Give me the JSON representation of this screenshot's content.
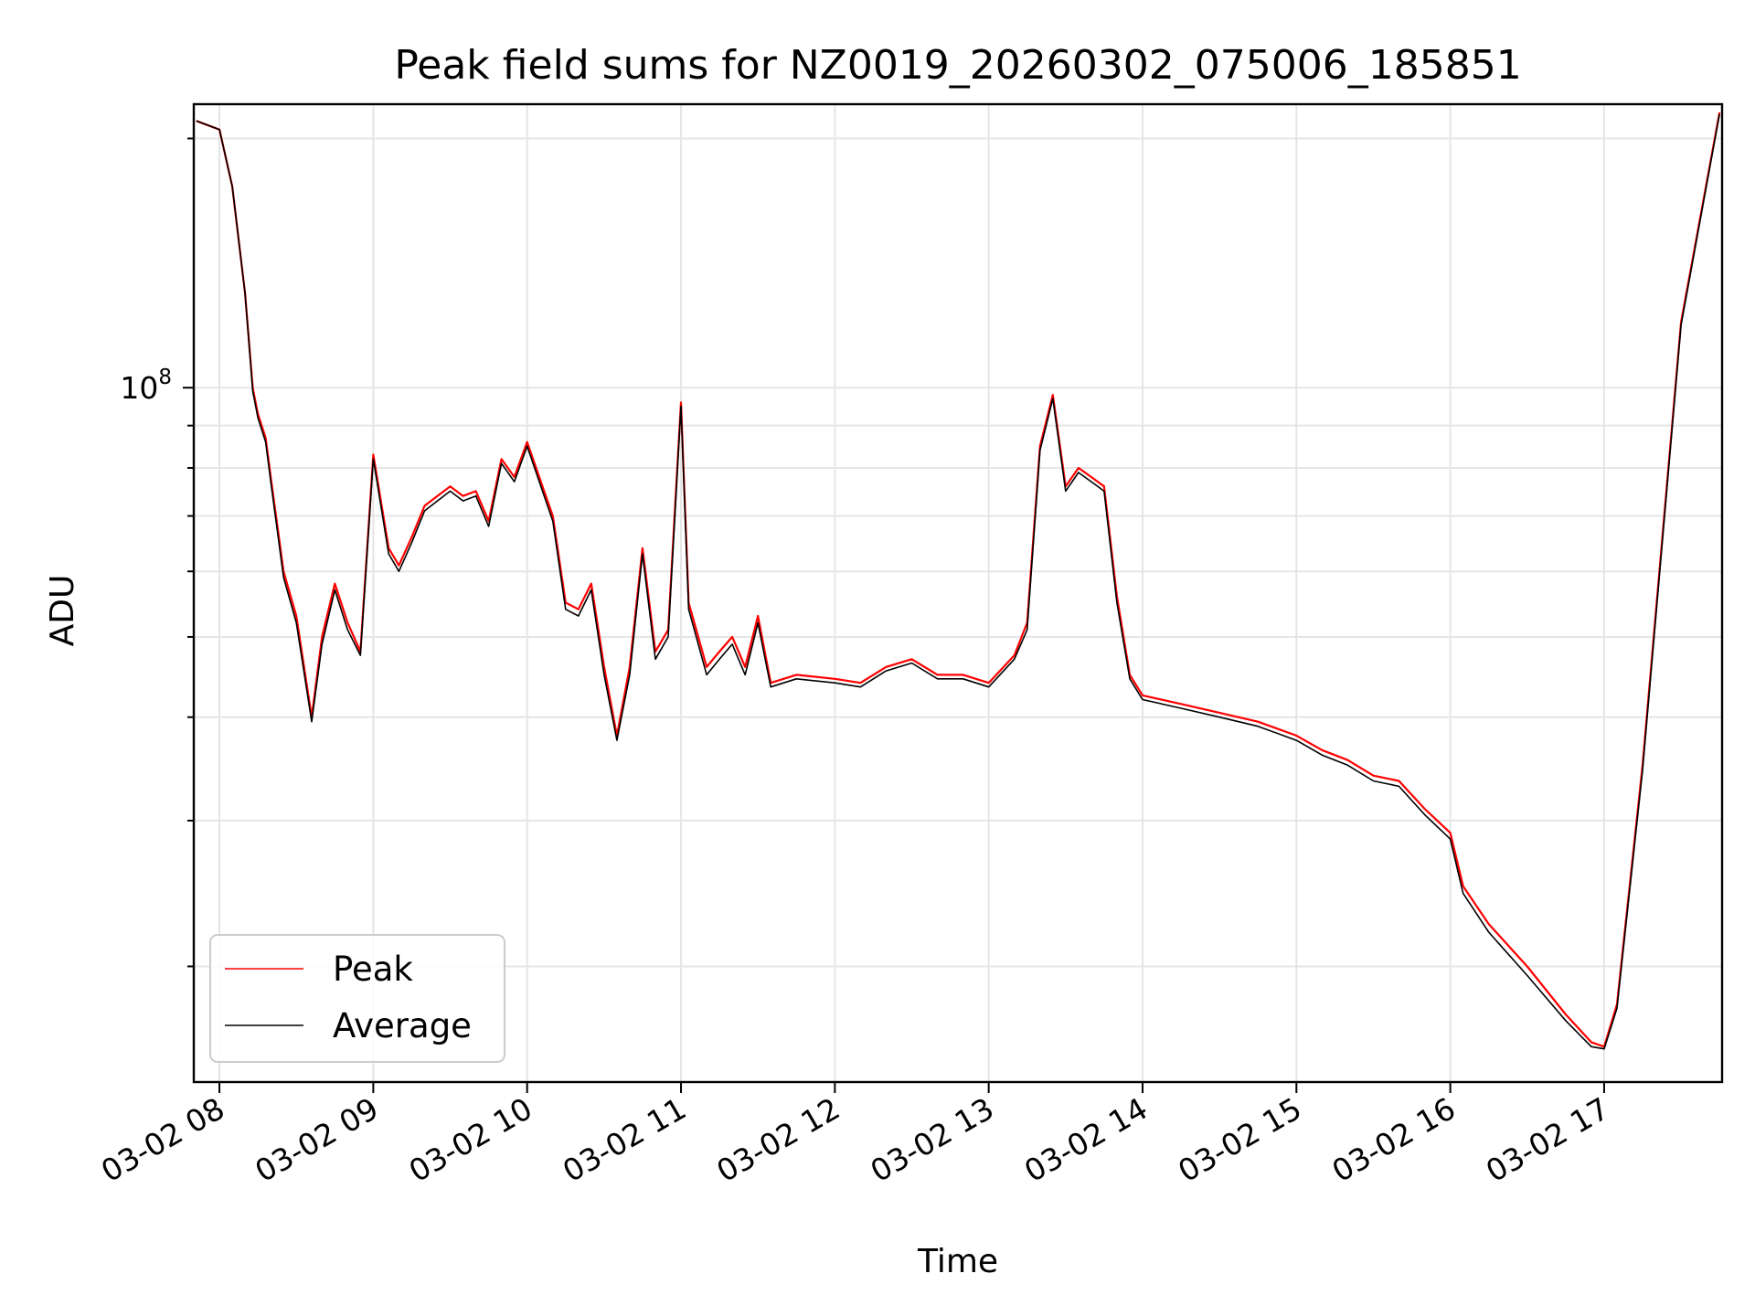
{
  "chart_data": {
    "type": "line",
    "title": "Peak field sums for NZ0019_20260302_075006_185851",
    "xlabel": "Time",
    "ylabel": "ADU",
    "yscale": "log",
    "grid": true,
    "legend_position": "lower-left",
    "xlim": [
      "03-02 07:50",
      "03-02 17:46"
    ],
    "ylim": [
      14500000,
      220000000
    ],
    "x_ticks": [
      "03-02 08",
      "03-02 09",
      "03-02 10",
      "03-02 11",
      "03-02 12",
      "03-02 13",
      "03-02 14",
      "03-02 15",
      "03-02 16",
      "03-02 17"
    ],
    "y_tick_major": {
      "value": 100000000,
      "base": "10",
      "exponent": "8"
    },
    "y_tick_minor": [
      20000000,
      30000000,
      40000000,
      50000000,
      60000000,
      70000000,
      80000000,
      90000000,
      200000000
    ],
    "colors": {
      "peak": "#ff0000",
      "average": "#000000"
    },
    "series": [
      {
        "name": "Peak",
        "color": "#ff0000",
        "x": [
          "03-02 07:51",
          "03-02 08:00",
          "03-02 08:05",
          "03-02 08:10",
          "03-02 08:13",
          "03-02 08:15",
          "03-02 08:18",
          "03-02 08:20",
          "03-02 08:25",
          "03-02 08:30",
          "03-02 08:36",
          "03-02 08:40",
          "03-02 08:45",
          "03-02 08:50",
          "03-02 08:55",
          "03-02 09:00",
          "03-02 09:06",
          "03-02 09:10",
          "03-02 09:15",
          "03-02 09:20",
          "03-02 09:25",
          "03-02 09:30",
          "03-02 09:35",
          "03-02 09:40",
          "03-02 09:45",
          "03-02 09:50",
          "03-02 09:55",
          "03-02 10:00",
          "03-02 10:06",
          "03-02 10:10",
          "03-02 10:15",
          "03-02 10:20",
          "03-02 10:25",
          "03-02 10:30",
          "03-02 10:35",
          "03-02 10:40",
          "03-02 10:45",
          "03-02 10:50",
          "03-02 10:55",
          "03-02 11:00",
          "03-02 11:03",
          "03-02 11:10",
          "03-02 11:15",
          "03-02 11:20",
          "03-02 11:25",
          "03-02 11:30",
          "03-02 11:35",
          "03-02 11:45",
          "03-02 12:00",
          "03-02 12:10",
          "03-02 12:20",
          "03-02 12:30",
          "03-02 12:40",
          "03-02 12:50",
          "03-02 13:00",
          "03-02 13:10",
          "03-02 13:15",
          "03-02 13:20",
          "03-02 13:25",
          "03-02 13:30",
          "03-02 13:35",
          "03-02 13:40",
          "03-02 13:45",
          "03-02 13:50",
          "03-02 13:55",
          "03-02 14:00",
          "03-02 14:15",
          "03-02 14:30",
          "03-02 14:45",
          "03-02 15:00",
          "03-02 15:10",
          "03-02 15:20",
          "03-02 15:30",
          "03-02 15:40",
          "03-02 15:50",
          "03-02 16:00",
          "03-02 16:05",
          "03-02 16:15",
          "03-02 16:30",
          "03-02 16:45",
          "03-02 16:55",
          "03-02 17:00",
          "03-02 17:05",
          "03-02 17:15",
          "03-02 17:30",
          "03-02 17:45"
        ],
        "y": [
          210000000,
          205000000,
          175000000,
          130000000,
          100000000,
          93000000,
          87000000,
          78000000,
          60000000,
          53000000,
          40000000,
          50000000,
          58000000,
          52000000,
          48000000,
          83000000,
          64000000,
          61000000,
          66000000,
          72000000,
          74000000,
          76000000,
          74000000,
          75000000,
          69000000,
          82000000,
          78000000,
          86000000,
          76000000,
          70000000,
          55000000,
          54000000,
          58000000,
          46000000,
          38000000,
          46000000,
          64000000,
          48000000,
          51000000,
          96000000,
          55000000,
          46000000,
          48000000,
          50000000,
          46000000,
          53000000,
          44000000,
          45000000,
          44500000,
          44000000,
          46000000,
          47000000,
          45000000,
          45000000,
          44000000,
          47500000,
          52000000,
          85000000,
          98000000,
          76000000,
          80000000,
          78000000,
          76000000,
          56000000,
          45000000,
          42500000,
          41500000,
          40500000,
          39500000,
          38000000,
          36500000,
          35500000,
          34000000,
          33500000,
          31000000,
          29000000,
          25000000,
          22500000,
          20000000,
          17500000,
          16200000,
          16000000,
          18000000,
          35000000,
          120000000,
          215000000
        ]
      },
      {
        "name": "Average",
        "color": "#000000",
        "x": [
          "03-02 07:51",
          "03-02 08:00",
          "03-02 08:05",
          "03-02 08:10",
          "03-02 08:13",
          "03-02 08:15",
          "03-02 08:18",
          "03-02 08:20",
          "03-02 08:25",
          "03-02 08:30",
          "03-02 08:36",
          "03-02 08:40",
          "03-02 08:45",
          "03-02 08:50",
          "03-02 08:55",
          "03-02 09:00",
          "03-02 09:06",
          "03-02 09:10",
          "03-02 09:15",
          "03-02 09:20",
          "03-02 09:25",
          "03-02 09:30",
          "03-02 09:35",
          "03-02 09:40",
          "03-02 09:45",
          "03-02 09:50",
          "03-02 09:55",
          "03-02 10:00",
          "03-02 10:06",
          "03-02 10:10",
          "03-02 10:15",
          "03-02 10:20",
          "03-02 10:25",
          "03-02 10:30",
          "03-02 10:35",
          "03-02 10:40",
          "03-02 10:45",
          "03-02 10:50",
          "03-02 10:55",
          "03-02 11:00",
          "03-02 11:03",
          "03-02 11:10",
          "03-02 11:15",
          "03-02 11:20",
          "03-02 11:25",
          "03-02 11:30",
          "03-02 11:35",
          "03-02 11:45",
          "03-02 12:00",
          "03-02 12:10",
          "03-02 12:20",
          "03-02 12:30",
          "03-02 12:40",
          "03-02 12:50",
          "03-02 13:00",
          "03-02 13:10",
          "03-02 13:15",
          "03-02 13:20",
          "03-02 13:25",
          "03-02 13:30",
          "03-02 13:35",
          "03-02 13:40",
          "03-02 13:45",
          "03-02 13:50",
          "03-02 13:55",
          "03-02 14:00",
          "03-02 14:15",
          "03-02 14:30",
          "03-02 14:45",
          "03-02 15:00",
          "03-02 15:10",
          "03-02 15:20",
          "03-02 15:30",
          "03-02 15:40",
          "03-02 15:50",
          "03-02 16:00",
          "03-02 16:05",
          "03-02 16:15",
          "03-02 16:30",
          "03-02 16:45",
          "03-02 16:55",
          "03-02 17:00",
          "03-02 17:05",
          "03-02 17:15",
          "03-02 17:30",
          "03-02 17:45"
        ],
        "y": [
          210000000,
          205000000,
          175000000,
          130000000,
          99000000,
          92000000,
          86000000,
          77000000,
          59000000,
          52000000,
          39500000,
          49000000,
          57000000,
          51000000,
          47500000,
          82000000,
          63000000,
          60000000,
          65000000,
          71000000,
          73000000,
          75000000,
          73000000,
          74000000,
          68000000,
          81000000,
          77000000,
          85000000,
          75000000,
          69000000,
          54000000,
          53000000,
          57000000,
          45000000,
          37500000,
          45000000,
          63000000,
          47000000,
          50000000,
          95000000,
          54000000,
          45000000,
          47000000,
          49000000,
          45000000,
          52000000,
          43500000,
          44500000,
          44000000,
          43500000,
          45500000,
          46500000,
          44500000,
          44500000,
          43500000,
          47000000,
          51000000,
          84000000,
          97000000,
          75000000,
          79000000,
          77000000,
          75000000,
          55000000,
          44500000,
          42000000,
          41000000,
          40000000,
          39000000,
          37500000,
          36000000,
          35000000,
          33500000,
          33000000,
          30500000,
          28500000,
          24500000,
          22000000,
          19500000,
          17200000,
          16000000,
          15900000,
          17800000,
          34500000,
          119000000,
          214000000
        ]
      }
    ]
  }
}
